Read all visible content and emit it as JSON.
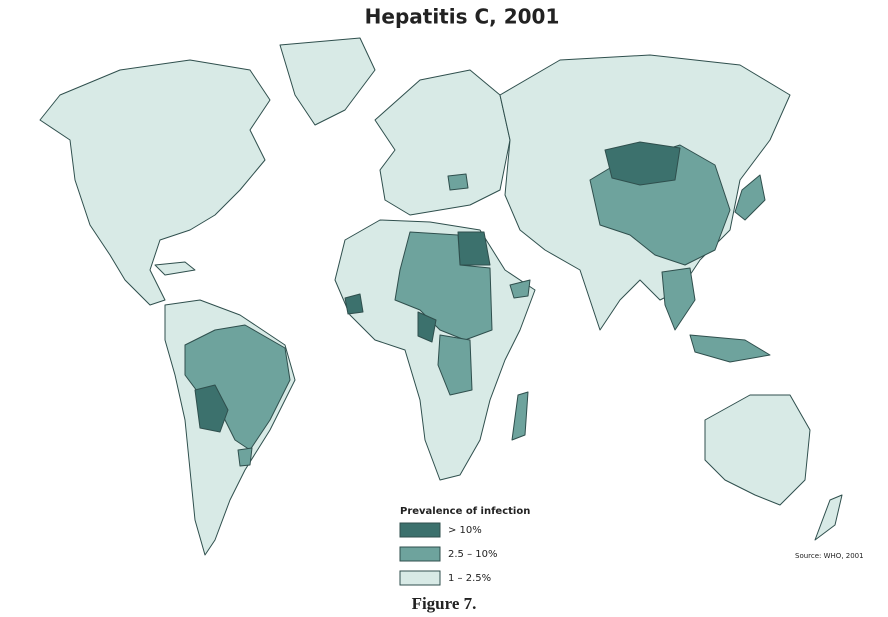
{
  "title": "Hepatitis C, 2001",
  "legend": {
    "title": "Prevalence of infection",
    "items": [
      {
        "label": "> 10%",
        "color": "#3c716d"
      },
      {
        "label": "2.5 – 10%",
        "color": "#6ea39d"
      },
      {
        "label": "1 – 2.5%",
        "color": "#d8eae6"
      }
    ]
  },
  "source": "Source: WHO, 2001",
  "caption": "Figure 7."
}
